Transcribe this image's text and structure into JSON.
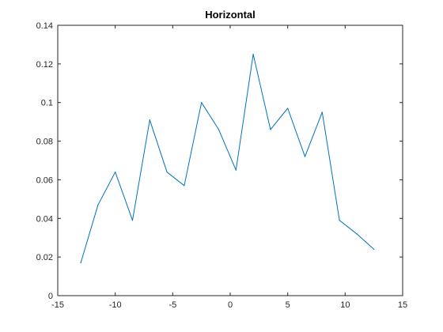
{
  "chart_data": {
    "type": "line",
    "title": "Horizontal",
    "xlabel": "",
    "ylabel": "",
    "xlim": [
      -15,
      15
    ],
    "ylim": [
      0,
      0.14
    ],
    "xticks": [
      "-15",
      "-10",
      "-5",
      "0",
      "5",
      "10",
      "15"
    ],
    "yticks": [
      "0",
      "0.02",
      "0.04",
      "0.06",
      "0.08",
      "0.1",
      "0.12",
      "0.14"
    ],
    "grid": false,
    "legend": "none",
    "series": [
      {
        "color": "#0072bd",
        "x": [
          -13,
          -11.5,
          -10,
          -8.5,
          -7,
          -5.5,
          -4,
          -2.5,
          -1,
          0.5,
          2,
          3.5,
          5,
          6.5,
          8,
          9.5,
          11,
          12.5
        ],
        "y": [
          0.017,
          0.047,
          0.064,
          0.039,
          0.091,
          0.064,
          0.057,
          0.1,
          0.086,
          0.065,
          0.125,
          0.086,
          0.097,
          0.072,
          0.095,
          0.039,
          0.032,
          0.024
        ]
      }
    ]
  }
}
